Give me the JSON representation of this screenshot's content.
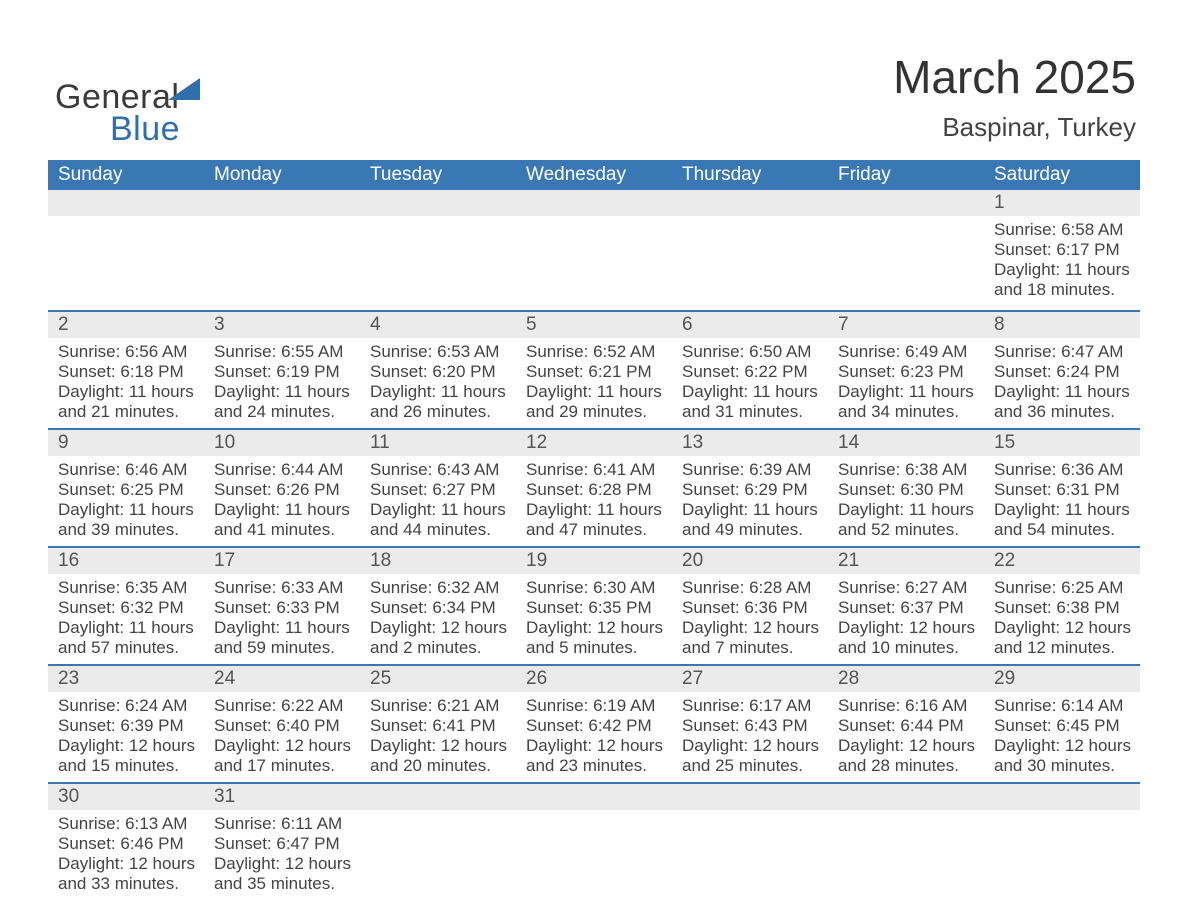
{
  "logo": {
    "text_general": "General",
    "text_blue": "Blue"
  },
  "title": {
    "month": "March 2025",
    "location": "Baspinar, Turkey"
  },
  "header_bg": "#3a78b5",
  "daynum_bar_bg": "#ebebeb",
  "divider_color": "#3a78b5",
  "text_color": "#444444",
  "fontsize_title": 46,
  "fontsize_location": 26,
  "fontsize_header": 19,
  "fontsize_daynum": 19,
  "fontsize_body": 17,
  "days_of_week": [
    "Sunday",
    "Monday",
    "Tuesday",
    "Wednesday",
    "Thursday",
    "Friday",
    "Saturday"
  ],
  "weeks": [
    [
      {
        "day": "",
        "lines": [
          "",
          "",
          "",
          ""
        ]
      },
      {
        "day": "",
        "lines": [
          "",
          "",
          "",
          ""
        ]
      },
      {
        "day": "",
        "lines": [
          "",
          "",
          "",
          ""
        ]
      },
      {
        "day": "",
        "lines": [
          "",
          "",
          "",
          ""
        ]
      },
      {
        "day": "",
        "lines": [
          "",
          "",
          "",
          ""
        ]
      },
      {
        "day": "",
        "lines": [
          "",
          "",
          "",
          ""
        ]
      },
      {
        "day": "1",
        "lines": [
          "Sunrise: 6:58 AM",
          "Sunset: 6:17 PM",
          "Daylight: 11 hours",
          "and 18 minutes."
        ]
      }
    ],
    [
      {
        "day": "2",
        "lines": [
          "Sunrise: 6:56 AM",
          "Sunset: 6:18 PM",
          "Daylight: 11 hours",
          "and 21 minutes."
        ]
      },
      {
        "day": "3",
        "lines": [
          "Sunrise: 6:55 AM",
          "Sunset: 6:19 PM",
          "Daylight: 11 hours",
          "and 24 minutes."
        ]
      },
      {
        "day": "4",
        "lines": [
          "Sunrise: 6:53 AM",
          "Sunset: 6:20 PM",
          "Daylight: 11 hours",
          "and 26 minutes."
        ]
      },
      {
        "day": "5",
        "lines": [
          "Sunrise: 6:52 AM",
          "Sunset: 6:21 PM",
          "Daylight: 11 hours",
          "and 29 minutes."
        ]
      },
      {
        "day": "6",
        "lines": [
          "Sunrise: 6:50 AM",
          "Sunset: 6:22 PM",
          "Daylight: 11 hours",
          "and 31 minutes."
        ]
      },
      {
        "day": "7",
        "lines": [
          "Sunrise: 6:49 AM",
          "Sunset: 6:23 PM",
          "Daylight: 11 hours",
          "and 34 minutes."
        ]
      },
      {
        "day": "8",
        "lines": [
          "Sunrise: 6:47 AM",
          "Sunset: 6:24 PM",
          "Daylight: 11 hours",
          "and 36 minutes."
        ]
      }
    ],
    [
      {
        "day": "9",
        "lines": [
          "Sunrise: 6:46 AM",
          "Sunset: 6:25 PM",
          "Daylight: 11 hours",
          "and 39 minutes."
        ]
      },
      {
        "day": "10",
        "lines": [
          "Sunrise: 6:44 AM",
          "Sunset: 6:26 PM",
          "Daylight: 11 hours",
          "and 41 minutes."
        ]
      },
      {
        "day": "11",
        "lines": [
          "Sunrise: 6:43 AM",
          "Sunset: 6:27 PM",
          "Daylight: 11 hours",
          "and 44 minutes."
        ]
      },
      {
        "day": "12",
        "lines": [
          "Sunrise: 6:41 AM",
          "Sunset: 6:28 PM",
          "Daylight: 11 hours",
          "and 47 minutes."
        ]
      },
      {
        "day": "13",
        "lines": [
          "Sunrise: 6:39 AM",
          "Sunset: 6:29 PM",
          "Daylight: 11 hours",
          "and 49 minutes."
        ]
      },
      {
        "day": "14",
        "lines": [
          "Sunrise: 6:38 AM",
          "Sunset: 6:30 PM",
          "Daylight: 11 hours",
          "and 52 minutes."
        ]
      },
      {
        "day": "15",
        "lines": [
          "Sunrise: 6:36 AM",
          "Sunset: 6:31 PM",
          "Daylight: 11 hours",
          "and 54 minutes."
        ]
      }
    ],
    [
      {
        "day": "16",
        "lines": [
          "Sunrise: 6:35 AM",
          "Sunset: 6:32 PM",
          "Daylight: 11 hours",
          "and 57 minutes."
        ]
      },
      {
        "day": "17",
        "lines": [
          "Sunrise: 6:33 AM",
          "Sunset: 6:33 PM",
          "Daylight: 11 hours",
          "and 59 minutes."
        ]
      },
      {
        "day": "18",
        "lines": [
          "Sunrise: 6:32 AM",
          "Sunset: 6:34 PM",
          "Daylight: 12 hours",
          "and 2 minutes."
        ]
      },
      {
        "day": "19",
        "lines": [
          "Sunrise: 6:30 AM",
          "Sunset: 6:35 PM",
          "Daylight: 12 hours",
          "and 5 minutes."
        ]
      },
      {
        "day": "20",
        "lines": [
          "Sunrise: 6:28 AM",
          "Sunset: 6:36 PM",
          "Daylight: 12 hours",
          "and 7 minutes."
        ]
      },
      {
        "day": "21",
        "lines": [
          "Sunrise: 6:27 AM",
          "Sunset: 6:37 PM",
          "Daylight: 12 hours",
          "and 10 minutes."
        ]
      },
      {
        "day": "22",
        "lines": [
          "Sunrise: 6:25 AM",
          "Sunset: 6:38 PM",
          "Daylight: 12 hours",
          "and 12 minutes."
        ]
      }
    ],
    [
      {
        "day": "23",
        "lines": [
          "Sunrise: 6:24 AM",
          "Sunset: 6:39 PM",
          "Daylight: 12 hours",
          "and 15 minutes."
        ]
      },
      {
        "day": "24",
        "lines": [
          "Sunrise: 6:22 AM",
          "Sunset: 6:40 PM",
          "Daylight: 12 hours",
          "and 17 minutes."
        ]
      },
      {
        "day": "25",
        "lines": [
          "Sunrise: 6:21 AM",
          "Sunset: 6:41 PM",
          "Daylight: 12 hours",
          "and 20 minutes."
        ]
      },
      {
        "day": "26",
        "lines": [
          "Sunrise: 6:19 AM",
          "Sunset: 6:42 PM",
          "Daylight: 12 hours",
          "and 23 minutes."
        ]
      },
      {
        "day": "27",
        "lines": [
          "Sunrise: 6:17 AM",
          "Sunset: 6:43 PM",
          "Daylight: 12 hours",
          "and 25 minutes."
        ]
      },
      {
        "day": "28",
        "lines": [
          "Sunrise: 6:16 AM",
          "Sunset: 6:44 PM",
          "Daylight: 12 hours",
          "and 28 minutes."
        ]
      },
      {
        "day": "29",
        "lines": [
          "Sunrise: 6:14 AM",
          "Sunset: 6:45 PM",
          "Daylight: 12 hours",
          "and 30 minutes."
        ]
      }
    ],
    [
      {
        "day": "30",
        "lines": [
          "Sunrise: 6:13 AM",
          "Sunset: 6:46 PM",
          "Daylight: 12 hours",
          "and 33 minutes."
        ]
      },
      {
        "day": "31",
        "lines": [
          "Sunrise: 6:11 AM",
          "Sunset: 6:47 PM",
          "Daylight: 12 hours",
          "and 35 minutes."
        ]
      },
      {
        "day": "",
        "lines": [
          "",
          "",
          "",
          ""
        ]
      },
      {
        "day": "",
        "lines": [
          "",
          "",
          "",
          ""
        ]
      },
      {
        "day": "",
        "lines": [
          "",
          "",
          "",
          ""
        ]
      },
      {
        "day": "",
        "lines": [
          "",
          "",
          "",
          ""
        ]
      },
      {
        "day": "",
        "lines": [
          "",
          "",
          "",
          ""
        ]
      }
    ]
  ]
}
